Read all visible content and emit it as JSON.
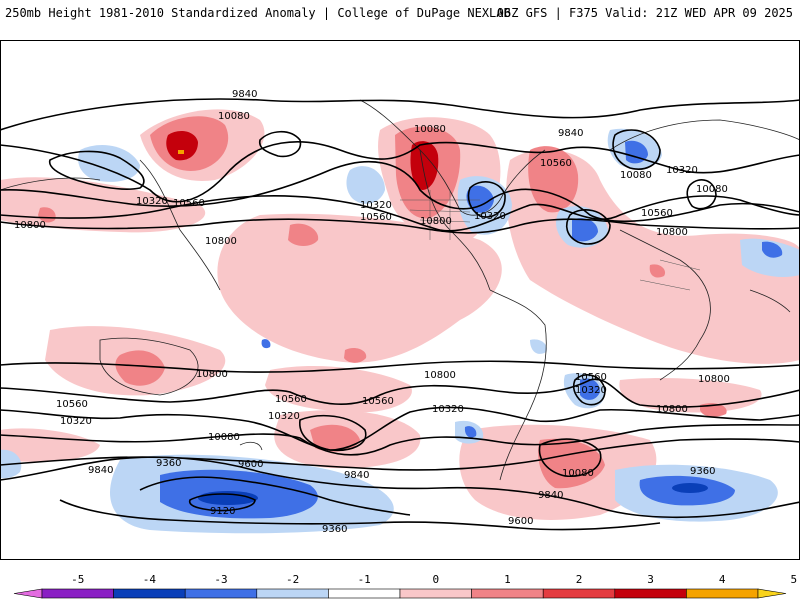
{
  "header": {
    "left_title": "250mb Height 1981-2010 Standardized Anomaly | College of DuPage NEXLAB",
    "right_title": "06Z GFS | F375 Valid: 21Z WED APR 09 2025"
  },
  "map": {
    "contour_labels": [
      "9840",
      "10080",
      "10080",
      "10320",
      "10560",
      "10800",
      "10800",
      "10320",
      "10560",
      "10800",
      "9840",
      "10560",
      "10080",
      "10320",
      "10080",
      "10320",
      "10560",
      "10800",
      "10800",
      "10800",
      "10560",
      "10320",
      "10560",
      "10320",
      "10560",
      "10320",
      "10800",
      "10800",
      "10560",
      "10320",
      "10080",
      "9840",
      "9360",
      "9600",
      "9840",
      "9120",
      "9360",
      "10080",
      "9840",
      "9600",
      "9360"
    ]
  },
  "colorbar": {
    "ticks": [
      "-5",
      "-4",
      "-3",
      "-2",
      "-1",
      "0",
      "1",
      "2",
      "3",
      "4",
      "5"
    ],
    "colors": [
      "#e36be0",
      "#8a1fc4",
      "#0a3fb8",
      "#3f70e6",
      "#bcd6f5",
      "#ffffff",
      "#f9c7c9",
      "#f08387",
      "#e43b40",
      "#c4000c",
      "#f5a300",
      "#f9d31c"
    ]
  }
}
